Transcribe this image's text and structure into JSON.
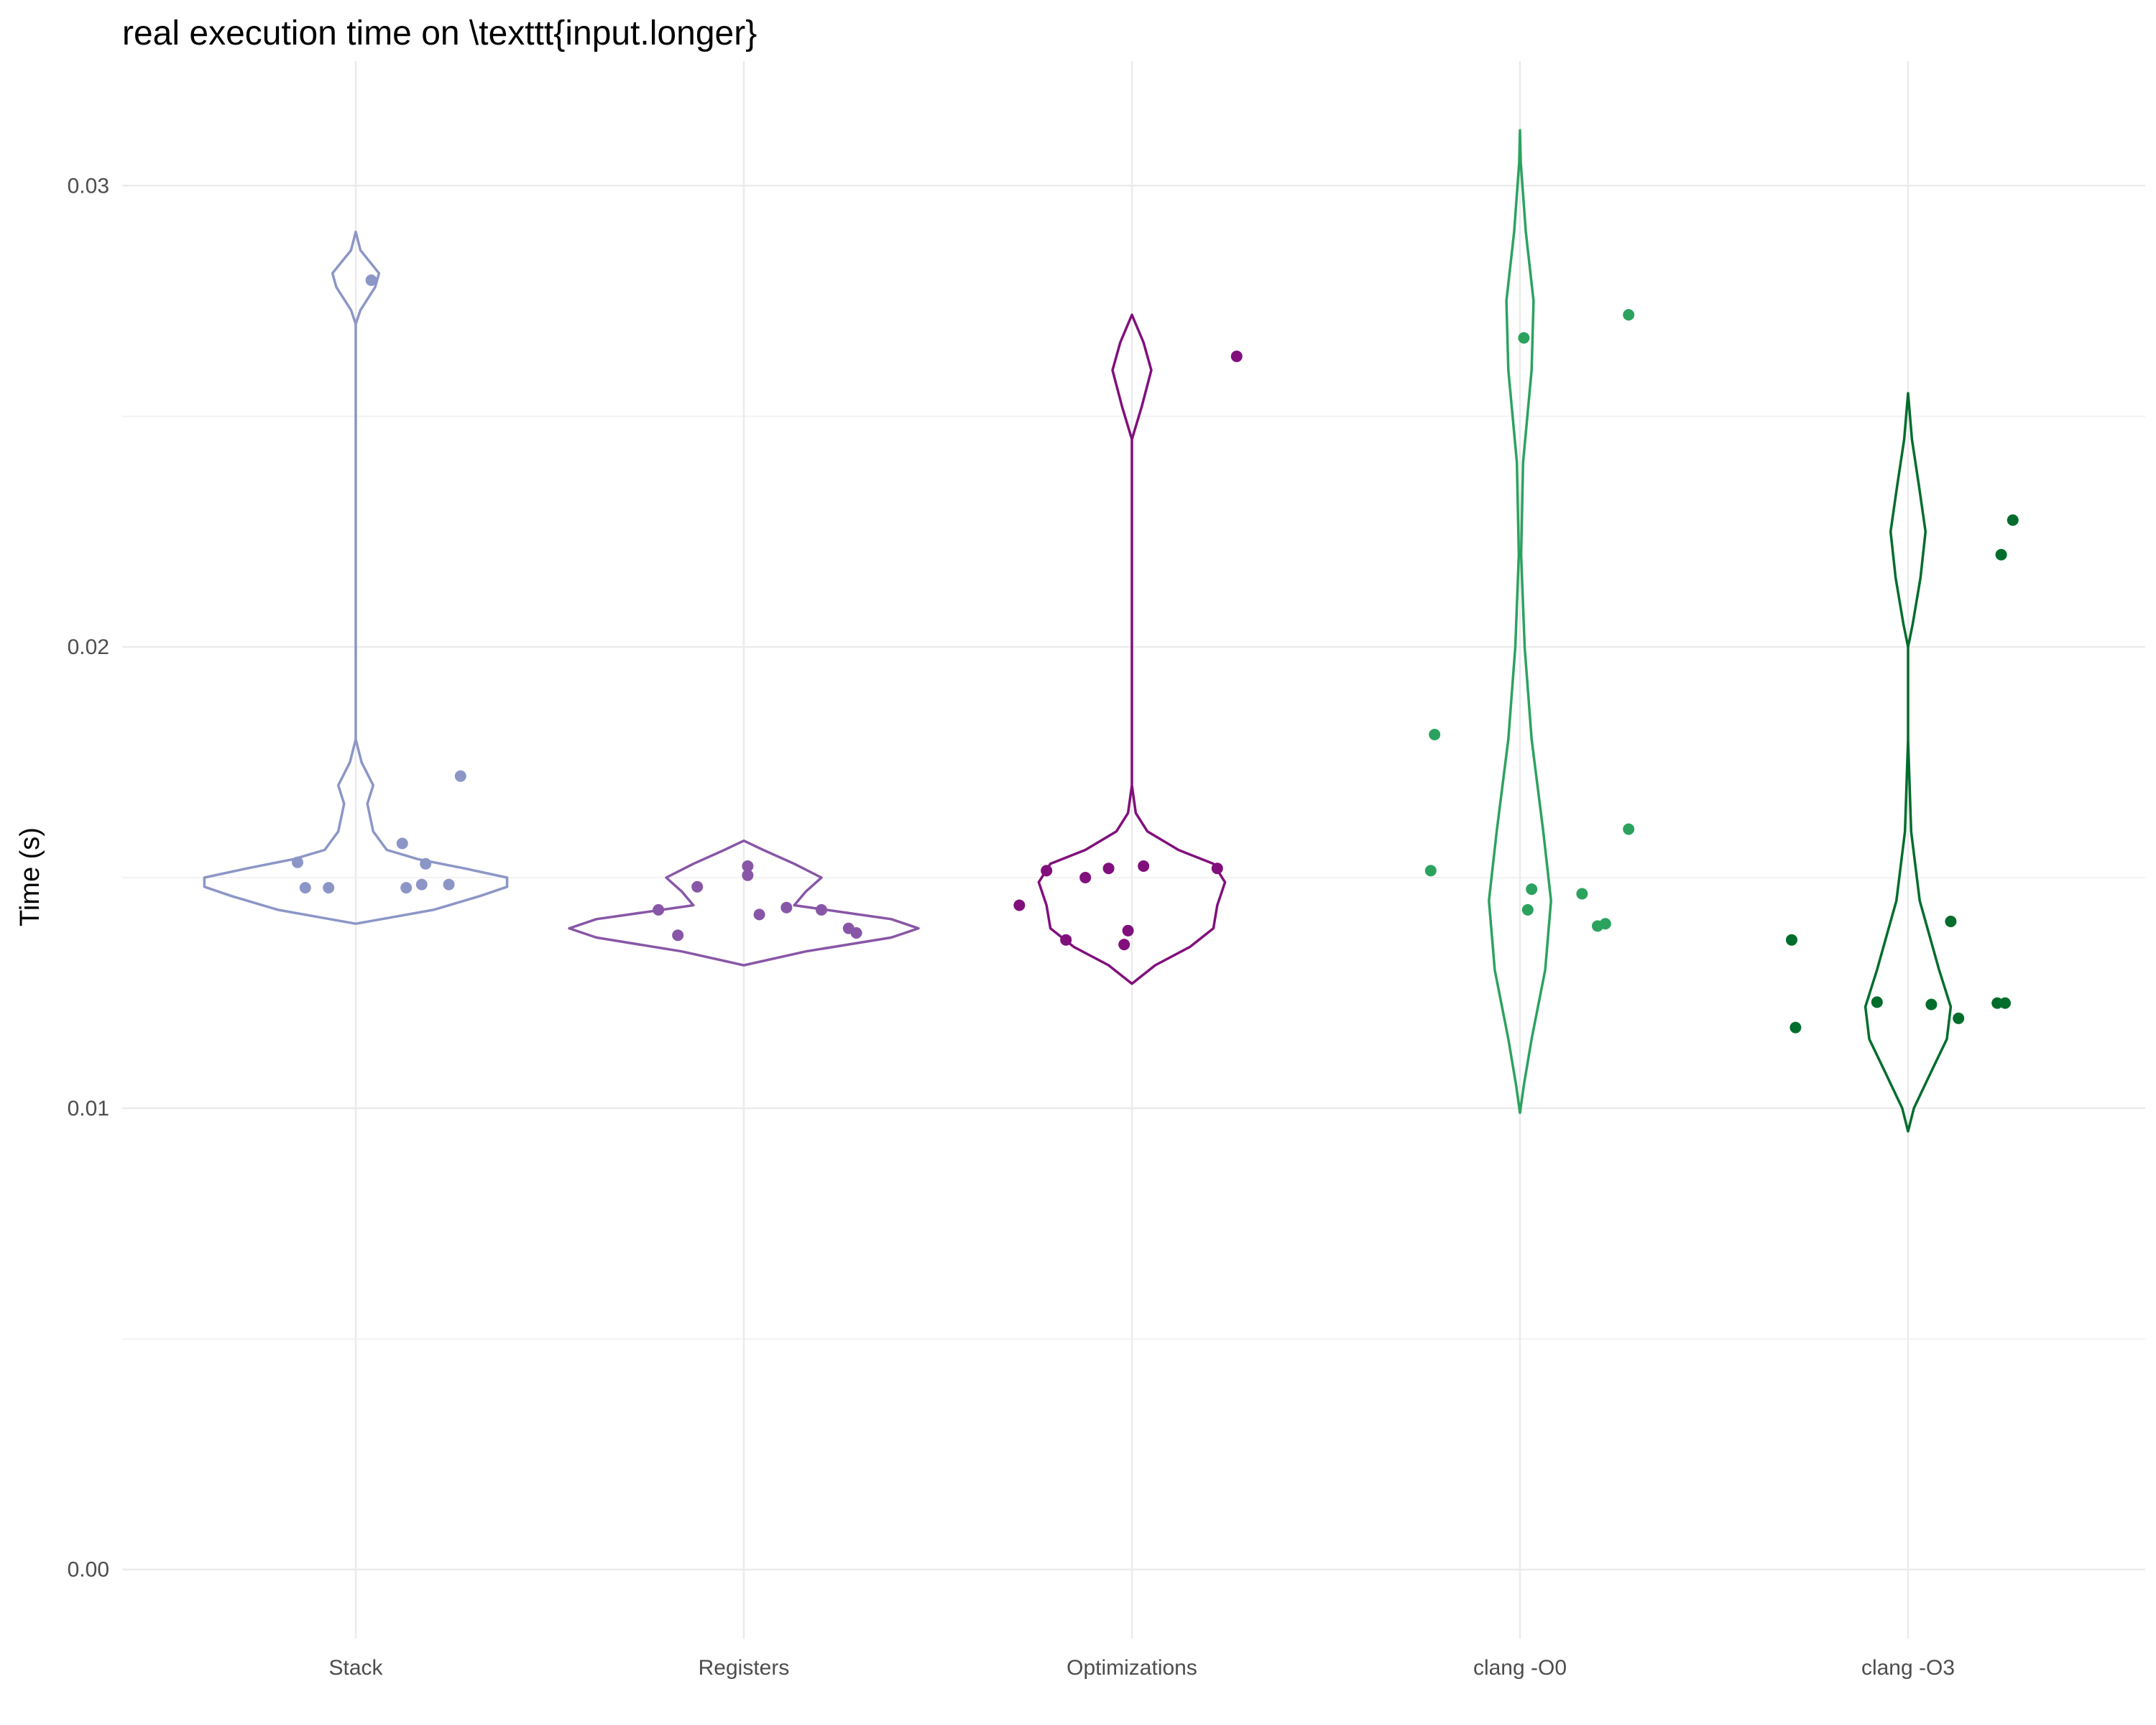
{
  "chart_data": {
    "type": "violin",
    "title": "real execution time on \\texttt{input.longer}",
    "xlabel": "",
    "ylabel": "Time (s)",
    "ylim": [
      -0.0015,
      0.0327
    ],
    "yticks": [
      0.0,
      0.01,
      0.02,
      0.03
    ],
    "ytick_labels": [
      "0.00",
      "0.01",
      "0.02",
      "0.03"
    ],
    "grid": true,
    "legend": "none",
    "categories": [
      "Stack",
      "Registers",
      "Optimizations",
      "clang -O0",
      "clang -O3"
    ],
    "series": [
      {
        "category": "Stack",
        "color": "#8c96c6",
        "points": [
          {
            "x": -0.15,
            "y": 0.01533
          },
          {
            "x": -0.13,
            "y": 0.01478
          },
          {
            "x": -0.07,
            "y": 0.01478
          },
          {
            "x": 0.04,
            "y": 0.02795
          },
          {
            "x": 0.12,
            "y": 0.01574
          },
          {
            "x": 0.18,
            "y": 0.0153
          },
          {
            "x": 0.13,
            "y": 0.01478
          },
          {
            "x": 0.17,
            "y": 0.01485
          },
          {
            "x": 0.24,
            "y": 0.01485
          },
          {
            "x": 0.27,
            "y": 0.0172
          }
        ],
        "violin": [
          [
            0.014,
            0.0
          ],
          [
            0.0143,
            0.2
          ],
          [
            0.0146,
            0.32
          ],
          [
            0.0148,
            0.39
          ],
          [
            0.015,
            0.39
          ],
          [
            0.0152,
            0.28
          ],
          [
            0.0154,
            0.16
          ],
          [
            0.0156,
            0.08
          ],
          [
            0.016,
            0.045
          ],
          [
            0.0166,
            0.03
          ],
          [
            0.017,
            0.045
          ],
          [
            0.0175,
            0.015
          ],
          [
            0.018,
            0.0
          ],
          [
            0.02,
            0.0
          ],
          [
            0.024,
            0.0
          ],
          [
            0.027,
            0.0
          ],
          [
            0.0273,
            0.012
          ],
          [
            0.0278,
            0.05
          ],
          [
            0.0281,
            0.06
          ],
          [
            0.0286,
            0.012
          ],
          [
            0.029,
            0.0
          ]
        ]
      },
      {
        "category": "Registers",
        "color": "#8856a7",
        "points": [
          {
            "x": -0.22,
            "y": 0.0143
          },
          {
            "x": -0.17,
            "y": 0.01375
          },
          {
            "x": -0.12,
            "y": 0.0148
          },
          {
            "x": 0.01,
            "y": 0.01525
          },
          {
            "x": 0.01,
            "y": 0.01505
          },
          {
            "x": 0.04,
            "y": 0.0142
          },
          {
            "x": 0.11,
            "y": 0.01435
          },
          {
            "x": 0.2,
            "y": 0.0143
          },
          {
            "x": 0.27,
            "y": 0.0139
          },
          {
            "x": 0.29,
            "y": 0.0138
          }
        ],
        "violin": [
          [
            0.0131,
            0.0
          ],
          [
            0.0134,
            0.16
          ],
          [
            0.0137,
            0.38
          ],
          [
            0.0139,
            0.45
          ],
          [
            0.0141,
            0.38
          ],
          [
            0.0144,
            0.13
          ],
          [
            0.0147,
            0.16
          ],
          [
            0.015,
            0.2
          ],
          [
            0.0153,
            0.13
          ],
          [
            0.0156,
            0.05
          ],
          [
            0.0158,
            0.0
          ]
        ]
      },
      {
        "category": "Optimizations",
        "color": "#810f7c",
        "points": [
          {
            "x": -0.29,
            "y": 0.0144
          },
          {
            "x": -0.22,
            "y": 0.01515
          },
          {
            "x": -0.17,
            "y": 0.01365
          },
          {
            "x": -0.12,
            "y": 0.015
          },
          {
            "x": -0.06,
            "y": 0.0152
          },
          {
            "x": -0.02,
            "y": 0.01355
          },
          {
            "x": -0.01,
            "y": 0.01385
          },
          {
            "x": 0.03,
            "y": 0.01525
          },
          {
            "x": 0.22,
            "y": 0.0152
          },
          {
            "x": 0.27,
            "y": 0.0263
          }
        ],
        "violin": [
          [
            0.0127,
            0.0
          ],
          [
            0.0131,
            0.06
          ],
          [
            0.0135,
            0.15
          ],
          [
            0.0139,
            0.21
          ],
          [
            0.0144,
            0.22
          ],
          [
            0.0149,
            0.24
          ],
          [
            0.0153,
            0.21
          ],
          [
            0.0156,
            0.12
          ],
          [
            0.016,
            0.04
          ],
          [
            0.0164,
            0.01
          ],
          [
            0.017,
            0.0
          ],
          [
            0.02,
            0.0
          ],
          [
            0.0245,
            0.0
          ],
          [
            0.0252,
            0.025
          ],
          [
            0.026,
            0.05
          ],
          [
            0.0266,
            0.03
          ],
          [
            0.0272,
            0.0
          ]
        ]
      },
      {
        "category": "clang -O0",
        "color": "#2ca25f",
        "points": [
          {
            "x": -0.22,
            "y": 0.0181
          },
          {
            "x": -0.23,
            "y": 0.01515
          },
          {
            "x": 0.01,
            "y": 0.0267
          },
          {
            "x": 0.03,
            "y": 0.01475
          },
          {
            "x": 0.02,
            "y": 0.0143
          },
          {
            "x": 0.16,
            "y": 0.01465
          },
          {
            "x": 0.2,
            "y": 0.01395
          },
          {
            "x": 0.22,
            "y": 0.014
          },
          {
            "x": 0.28,
            "y": 0.01605
          },
          {
            "x": 0.28,
            "y": 0.0272
          }
        ],
        "violin": [
          [
            0.0099,
            0.0
          ],
          [
            0.0105,
            0.01
          ],
          [
            0.0115,
            0.03
          ],
          [
            0.013,
            0.065
          ],
          [
            0.0145,
            0.08
          ],
          [
            0.016,
            0.06
          ],
          [
            0.018,
            0.03
          ],
          [
            0.02,
            0.012
          ],
          [
            0.022,
            0.003
          ],
          [
            0.024,
            0.008
          ],
          [
            0.026,
            0.03
          ],
          [
            0.0275,
            0.035
          ],
          [
            0.029,
            0.015
          ],
          [
            0.0305,
            0.002
          ],
          [
            0.0312,
            0.0
          ]
        ]
      },
      {
        "category": "clang -O3",
        "color": "#006d2c",
        "points": [
          {
            "x": -0.3,
            "y": 0.01365
          },
          {
            "x": -0.29,
            "y": 0.01175
          },
          {
            "x": -0.08,
            "y": 0.0123
          },
          {
            "x": 0.06,
            "y": 0.01225
          },
          {
            "x": 0.11,
            "y": 0.01405
          },
          {
            "x": 0.13,
            "y": 0.01195
          },
          {
            "x": 0.23,
            "y": 0.01228
          },
          {
            "x": 0.24,
            "y": 0.022
          },
          {
            "x": 0.25,
            "y": 0.01228
          },
          {
            "x": 0.27,
            "y": 0.02275
          }
        ],
        "violin": [
          [
            0.0095,
            0.0
          ],
          [
            0.01,
            0.015
          ],
          [
            0.0108,
            0.06
          ],
          [
            0.0115,
            0.1
          ],
          [
            0.0122,
            0.11
          ],
          [
            0.013,
            0.08
          ],
          [
            0.0145,
            0.03
          ],
          [
            0.016,
            0.008
          ],
          [
            0.018,
            0.0
          ],
          [
            0.02,
            0.0
          ],
          [
            0.0205,
            0.012
          ],
          [
            0.0215,
            0.032
          ],
          [
            0.0225,
            0.045
          ],
          [
            0.0235,
            0.028
          ],
          [
            0.0245,
            0.01
          ],
          [
            0.0255,
            0.0
          ]
        ]
      }
    ]
  }
}
